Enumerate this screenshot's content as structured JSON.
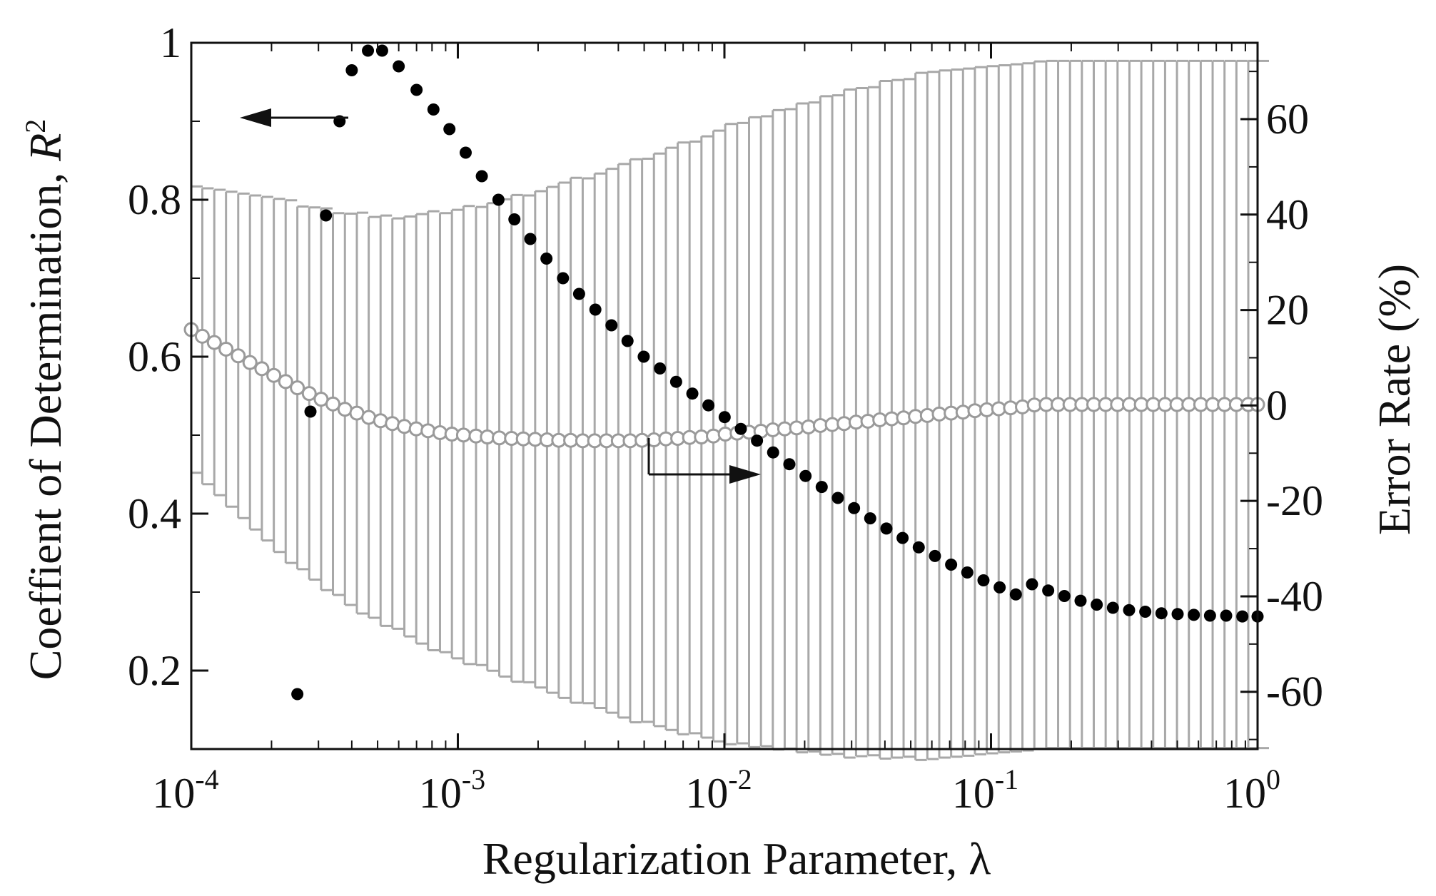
{
  "chart_data": {
    "type": "scatter",
    "xlabel": "Regularization Parameter, λ",
    "ylabel_left": "Coeffient of Determination, ",
    "ylabel_left_symbol": "R",
    "ylabel_left_exponent": "2",
    "ylabel_right": "Error Rate (%)",
    "xscale": "log",
    "xlim": [
      0.0001,
      1
    ],
    "ylim_left": [
      0.1,
      1.0
    ],
    "ylim_right": [
      -72,
      76
    ],
    "x_ticks": [
      {
        "value": 0.0001,
        "base": "10",
        "exp": "-4"
      },
      {
        "value": 0.001,
        "base": "10",
        "exp": "-3"
      },
      {
        "value": 0.01,
        "base": "10",
        "exp": "-2"
      },
      {
        "value": 0.1,
        "base": "10",
        "exp": "-1"
      },
      {
        "value": 1,
        "base": "10",
        "exp": "0"
      }
    ],
    "y_left_ticks": [
      {
        "value": 0.2,
        "label": "0.2"
      },
      {
        "value": 0.4,
        "label": "0.4"
      },
      {
        "value": 0.6,
        "label": "0.6"
      },
      {
        "value": 0.8,
        "label": "0.8"
      },
      {
        "value": 1.0,
        "label": "1"
      }
    ],
    "y_right_ticks": [
      {
        "value": -60,
        "label": "-60"
      },
      {
        "value": -40,
        "label": "-40"
      },
      {
        "value": -20,
        "label": "-20"
      },
      {
        "value": 0,
        "label": "0"
      },
      {
        "value": 20,
        "label": "20"
      },
      {
        "value": 40,
        "label": "40"
      },
      {
        "value": 60,
        "label": "60"
      }
    ],
    "grid": false,
    "legend": "none",
    "annotations": [
      {
        "type": "arrow",
        "direction": "left",
        "points_to_axis": "left"
      },
      {
        "type": "arrow",
        "direction": "right",
        "points_to_axis": "right"
      }
    ],
    "series": [
      {
        "axis": "left",
        "marker": "filled-circle",
        "color": "#000000",
        "x": [
          0.00025,
          0.00028,
          0.00032,
          0.00036,
          0.0004,
          0.00046,
          0.00052,
          0.0006,
          0.0007,
          0.00081,
          0.00093,
          0.00107,
          0.00123,
          0.00142,
          0.00163,
          0.00187,
          0.00215,
          0.00248,
          0.00285,
          0.00328,
          0.00377,
          0.00433,
          0.00498,
          0.00573,
          0.00659,
          0.00758,
          0.00871,
          0.01002,
          0.01152,
          0.01325,
          0.01523,
          0.01752,
          0.02015,
          0.02317,
          0.02664,
          0.03064,
          0.03523,
          0.04052,
          0.04659,
          0.05358,
          0.06162,
          0.07086,
          0.08149,
          0.09371,
          0.10777,
          0.12393,
          0.14252,
          0.1639,
          0.18848,
          0.21676,
          0.24927,
          0.28666,
          0.32966,
          0.37911,
          0.43598,
          0.50138,
          0.57658,
          0.66307,
          0.76253,
          0.87691,
          1.0
        ],
        "y": [
          0.17,
          0.53,
          0.78,
          0.9,
          0.965,
          0.99,
          0.99,
          0.97,
          0.94,
          0.915,
          0.89,
          0.86,
          0.83,
          0.8,
          0.775,
          0.75,
          0.725,
          0.7,
          0.68,
          0.66,
          0.64,
          0.62,
          0.6,
          0.585,
          0.568,
          0.553,
          0.538,
          0.523,
          0.508,
          0.493,
          0.478,
          0.463,
          0.448,
          0.434,
          0.42,
          0.407,
          0.394,
          0.381,
          0.369,
          0.357,
          0.346,
          0.335,
          0.325,
          0.315,
          0.306,
          0.297,
          0.31,
          0.302,
          0.295,
          0.289,
          0.284,
          0.28,
          0.277,
          0.275,
          0.273,
          0.272,
          0.271,
          0.27,
          0.27,
          0.269,
          0.269
        ]
      },
      {
        "axis": "right",
        "marker": "open-circle",
        "color": "#9a9a9a",
        "x": [
          0.0001,
          0.00011,
          0.000122,
          0.000135,
          0.00015,
          0.000166,
          0.000184,
          0.000204,
          0.000226,
          0.00025,
          0.000277,
          0.000307,
          0.00034,
          0.000377,
          0.000418,
          0.000463,
          0.000513,
          0.000568,
          0.00063,
          0.000698,
          0.000773,
          0.000857,
          0.00095,
          0.00105,
          0.00117,
          0.00129,
          0.00143,
          0.00159,
          0.00176,
          0.00195,
          0.00216,
          0.00239,
          0.00265,
          0.00294,
          0.00326,
          0.00361,
          0.004,
          0.00443,
          0.00491,
          0.00544,
          0.00603,
          0.00668,
          0.0074,
          0.0082,
          0.00909,
          0.01007,
          0.01116,
          0.01237,
          0.01371,
          0.01519,
          0.01683,
          0.01865,
          0.02067,
          0.0229,
          0.02538,
          0.02812,
          0.03117,
          0.03454,
          0.03827,
          0.04241,
          0.047,
          0.05208,
          0.05771,
          0.06395,
          0.07087,
          0.07853,
          0.08702,
          0.09643,
          0.10686,
          0.11841,
          0.13121,
          0.1454,
          0.16113,
          0.17855,
          0.19786,
          0.21925,
          0.24296,
          0.26923,
          0.29834,
          0.3306,
          0.36635,
          0.40597,
          0.44986,
          0.49851,
          0.55241,
          0.61214,
          0.67833,
          0.75168,
          0.83296,
          0.92302,
          1.0
        ],
        "y": [
          15.9,
          14.5,
          13.2,
          11.8,
          10.4,
          9.0,
          7.7,
          6.3,
          5.0,
          3.7,
          2.5,
          1.3,
          0.3,
          -0.8,
          -1.6,
          -2.5,
          -3.2,
          -3.8,
          -4.4,
          -4.9,
          -5.3,
          -5.7,
          -6.0,
          -6.2,
          -6.4,
          -6.6,
          -6.8,
          -6.9,
          -7.0,
          -7.1,
          -7.2,
          -7.3,
          -7.3,
          -7.4,
          -7.4,
          -7.4,
          -7.4,
          -7.4,
          -7.3,
          -7.2,
          -7.0,
          -6.9,
          -6.7,
          -6.6,
          -6.4,
          -6.0,
          -5.8,
          -5.6,
          -5.4,
          -5.1,
          -4.9,
          -4.7,
          -4.5,
          -4.2,
          -4.0,
          -3.8,
          -3.5,
          -3.3,
          -3.0,
          -2.8,
          -2.6,
          -2.3,
          -2.1,
          -1.8,
          -1.6,
          -1.4,
          -1.1,
          -0.9,
          -0.7,
          -0.5,
          -0.3,
          0.1,
          0.2,
          0.2,
          0.2,
          0.2,
          0.2,
          0.2,
          0.2,
          0.2,
          0.2,
          0.2,
          0.2,
          0.2,
          0.2,
          0.2,
          0.2,
          0.2,
          0.2,
          0.2,
          0.2
        ],
        "error": [
          30,
          31,
          32,
          33,
          34,
          35,
          36,
          37,
          38,
          38,
          39,
          40,
          40,
          41,
          42,
          42,
          43,
          43,
          44,
          45,
          46,
          46,
          47,
          48,
          48,
          49,
          50,
          51,
          51,
          52,
          53,
          54,
          55,
          55,
          56,
          57,
          58,
          59,
          59,
          60,
          61,
          62,
          62,
          63,
          64,
          65,
          65,
          66,
          66,
          67,
          67,
          68,
          68,
          69,
          69,
          70,
          70,
          70,
          71,
          71,
          71,
          72,
          72,
          72,
          72,
          72,
          72,
          72,
          72,
          72,
          72,
          72,
          72,
          72,
          72,
          72,
          72,
          72,
          72,
          72,
          72,
          72,
          72,
          72,
          72,
          72,
          72,
          72,
          72,
          72,
          72
        ]
      }
    ],
    "colors": {
      "axis": "#111111",
      "error_bars": "#a8a8a8",
      "filled_marker": "#000000",
      "open_marker_fill": "#ffffff",
      "open_marker_stroke": "#9a9a9a"
    }
  }
}
